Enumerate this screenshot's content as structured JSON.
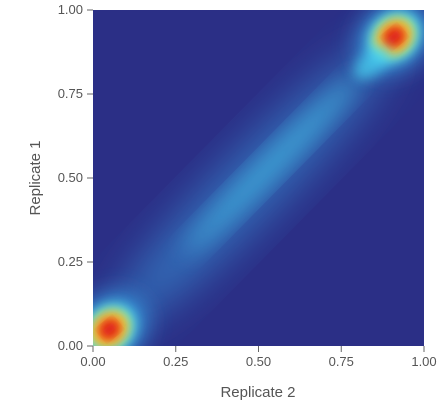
{
  "chart_data": {
    "type": "heatmap",
    "title": "",
    "xlabel": "Replicate 2",
    "ylabel": "Replicate 1",
    "xlim": [
      0,
      1
    ],
    "ylim": [
      0,
      1
    ],
    "x_ticks": [
      0,
      0.25,
      0.5,
      0.75,
      1
    ],
    "y_ticks": [
      0,
      0.25,
      0.5,
      0.75,
      1
    ],
    "x_tick_labels": [
      "0.00",
      "0.25",
      "0.50",
      "0.75",
      "1.00"
    ],
    "y_tick_labels": [
      "0.00",
      "0.25",
      "0.50",
      "0.75",
      "1.00"
    ],
    "grid": false,
    "colormap": [
      "#2b2f86",
      "#3aa8e8",
      "#48d6f2",
      "#f3ee3a",
      "#f59a24",
      "#e8251e",
      "#cc0a14"
    ],
    "background_color": "#2b2f86",
    "density_peaks": [
      {
        "x": 0.05,
        "y": 0.05,
        "relative_density": 1.0
      },
      {
        "x": 0.91,
        "y": 0.92,
        "relative_density": 1.0
      }
    ],
    "ridge": {
      "from": [
        0.1,
        0.1
      ],
      "to": [
        0.85,
        0.85
      ],
      "relative_density": 0.4
    }
  }
}
